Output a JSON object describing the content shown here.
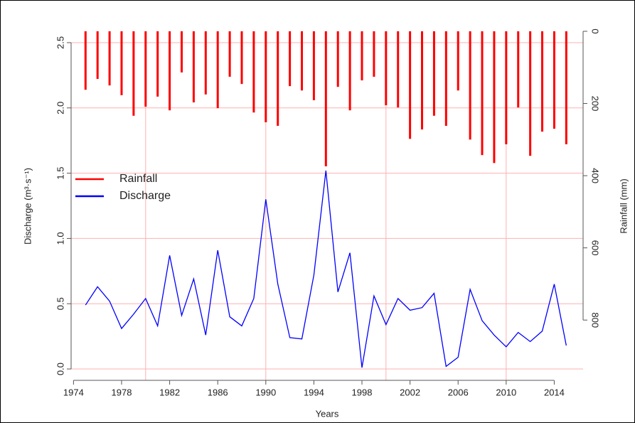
{
  "chart_data": {
    "type": "bar_line",
    "xlabel": "Years",
    "ylabel": "Discharge (m³·s⁻¹)",
    "y2label": "Rainfall (mm)",
    "x": [
      1975,
      1976,
      1977,
      1978,
      1979,
      1980,
      1981,
      1982,
      1983,
      1984,
      1985,
      1986,
      1987,
      1988,
      1989,
      1990,
      1991,
      1992,
      1993,
      1994,
      1995,
      1996,
      1997,
      1998,
      1999,
      2000,
      2001,
      2002,
      2003,
      2004,
      2005,
      2006,
      2007,
      2008,
      2009,
      2010,
      2011,
      2012,
      2013,
      2014,
      2015
    ],
    "series": [
      {
        "name": "Rainfall",
        "color": "#ff0000",
        "axis": "y2",
        "kind": "bar",
        "values": [
          162,
          132,
          150,
          177,
          234,
          209,
          181,
          219,
          114,
          197,
          175,
          213,
          126,
          146,
          225,
          252,
          262,
          152,
          164,
          191,
          374,
          154,
          219,
          136,
          126,
          205,
          211,
          298,
          272,
          234,
          262,
          164,
          300,
          343,
          365,
          313,
          211,
          345,
          278,
          270,
          313
        ]
      },
      {
        "name": "Discharge",
        "color": "#0000ff",
        "kind": "line",
        "values": [
          0.49,
          0.63,
          0.52,
          0.31,
          0.42,
          0.54,
          0.33,
          0.87,
          0.41,
          0.69,
          0.26,
          0.91,
          0.4,
          0.33,
          0.54,
          1.3,
          0.65,
          0.24,
          0.23,
          0.72,
          1.52,
          0.59,
          0.89,
          0.01,
          0.56,
          0.34,
          0.54,
          0.45,
          0.47,
          0.58,
          0.02,
          0.09,
          0.61,
          0.37,
          0.26,
          0.17,
          0.28,
          0.21,
          0.29,
          0.65,
          0.18
        ]
      }
    ],
    "xlim": [
      1973.8,
      2016.4
    ],
    "xticks": [
      1974,
      1978,
      1982,
      1986,
      1990,
      1994,
      1998,
      2002,
      2006,
      2010,
      2014
    ],
    "xgrid": [
      1980,
      1990,
      2000,
      2010
    ],
    "ylim": [
      -0.087,
      2.587
    ],
    "yticks": [
      {
        "value": 0,
        "label": "0.0"
      },
      0.5,
      {
        "value": 1,
        "label": "1.0"
      },
      1.5,
      {
        "value": 2,
        "label": "2.0"
      },
      2.5
    ],
    "y2lim": [
      0,
      967
    ],
    "y2_reversed": true,
    "y2ticks": [
      0,
      200,
      400,
      600,
      800
    ],
    "grid": true,
    "grid_color": "#ffb0b0",
    "legend": "upper-left"
  }
}
